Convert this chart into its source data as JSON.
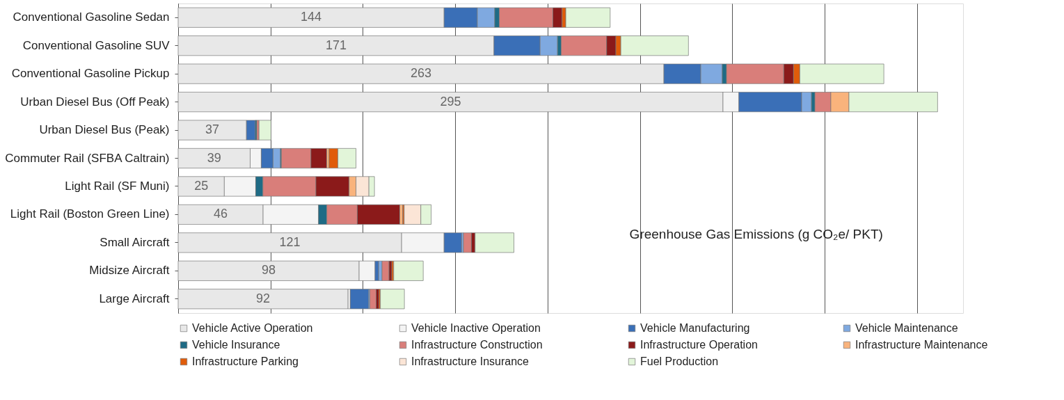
{
  "chart_data": {
    "type": "bar",
    "orientation": "horizontal",
    "stacked": true,
    "categories": [
      "Conventional Gasoline Sedan",
      "Conventional Gasoline SUV",
      "Conventional Gasoline Pickup",
      "Urban Diesel Bus (Off Peak)",
      "Urban Diesel Bus (Peak)",
      "Commuter Rail (SFBA Caltrain)",
      "Light Rail (SF Muni)",
      "Light Rail (Boston Green Line)",
      "Small Aircraft",
      "Midsize Aircraft",
      "Large Aircraft"
    ],
    "xlabel": "Greenhouse Gas Emissions (g CO₂e/ PKT)",
    "xlim": [
      0,
      425
    ],
    "xticks": [
      {
        "value": 0,
        "label": null
      },
      {
        "value": 50,
        "label": null
      },
      {
        "value": 100,
        "label": null
      },
      {
        "value": 150,
        "label": null
      },
      {
        "value": 200,
        "label": null
      },
      {
        "value": 250,
        "label": null
      },
      {
        "value": 300,
        "label": null
      },
      {
        "value": 350,
        "label": null
      },
      {
        "value": 400,
        "label": null
      }
    ],
    "tick_labels": "y",
    "grid": "x",
    "legend": "bottom",
    "series": [
      {
        "name": "Vehicle Active Operation",
        "color": "#e8e8e8",
        "values": [
          144,
          171,
          263,
          295,
          37,
          39,
          25,
          46,
          121,
          98,
          92
        ],
        "value_labels": [
          "144",
          "171",
          "263",
          "295",
          "37",
          "39",
          "25",
          "46",
          "121",
          "98",
          "92"
        ]
      },
      {
        "name": "Vehicle Inactive Operation",
        "color": "#f4f4f4",
        "values": [
          null,
          null,
          null,
          8.6,
          null,
          6,
          17,
          30,
          23,
          8.6,
          1.2
        ]
      },
      {
        "name": "Vehicle Manufacturing",
        "color": "#3a6fb7",
        "values": [
          18,
          25,
          20,
          34,
          4.8,
          6.4,
          null,
          null,
          9.5,
          2,
          10
        ]
      },
      {
        "name": "Vehicle Maintenance",
        "color": "#7fa9e0",
        "values": [
          9.4,
          9.4,
          11.6,
          5.3,
          null,
          4,
          null,
          null,
          1,
          1.8,
          0.6
        ]
      },
      {
        "name": "Vehicle Insurance",
        "color": "#1f6b85",
        "values": [
          2.5,
          2,
          2.3,
          1.9,
          0.8,
          0.5,
          3.9,
          4.5,
          null,
          null,
          null
        ]
      },
      {
        "name": "Infrastructure Construction",
        "color": "#d97e7a",
        "values": [
          29,
          24.6,
          31,
          8.6,
          1.2,
          16,
          28.7,
          16.5,
          4.3,
          3.8,
          3.4
        ]
      },
      {
        "name": "Infrastructure Operation",
        "color": "#8b1a1a",
        "values": [
          5,
          5,
          5.3,
          null,
          null,
          8.6,
          18,
          23,
          2,
          1.5,
          1.5
        ]
      },
      {
        "name": "Infrastructure Maintenance",
        "color": "#f9b37c",
        "values": [
          null,
          null,
          null,
          9.8,
          null,
          1.2,
          3.7,
          1.6,
          null,
          null,
          null
        ]
      },
      {
        "name": "Infrastructure Parking",
        "color": "#e05c0a",
        "values": [
          2,
          2.7,
          3.4,
          null,
          null,
          4.8,
          null,
          0.8,
          null,
          1,
          0.8
        ]
      },
      {
        "name": "Infrastructure Insurance",
        "color": "#fbe5d6",
        "values": [
          null,
          null,
          null,
          null,
          null,
          null,
          7,
          9,
          null,
          null,
          null
        ]
      },
      {
        "name": "Fuel Production",
        "color": "#e2f5d9",
        "values": [
          24,
          36.6,
          45.5,
          48,
          6.5,
          9.8,
          3,
          5.6,
          21,
          16,
          13
        ]
      }
    ]
  }
}
